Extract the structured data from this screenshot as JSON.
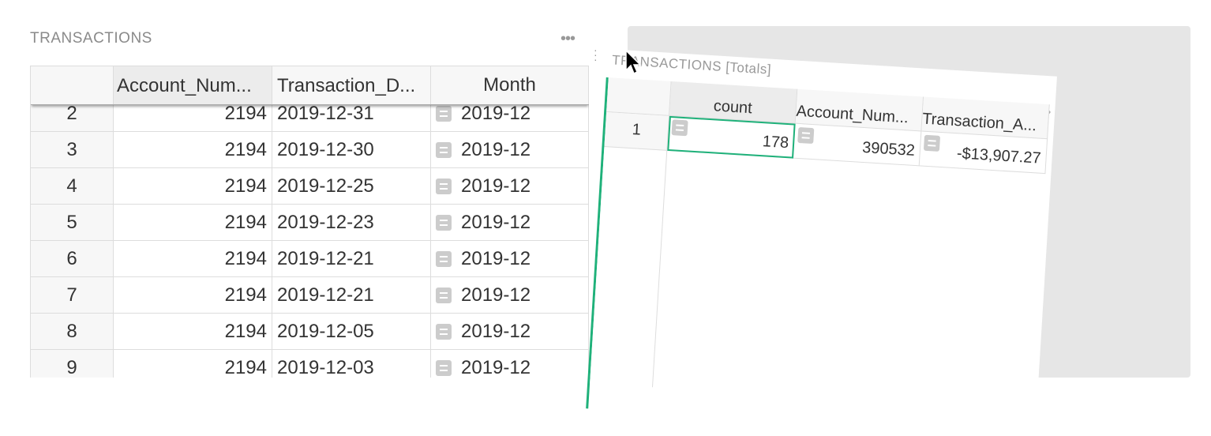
{
  "left_table": {
    "title": "TRANSACTIONS",
    "menu": "•••",
    "columns": [
      "",
      "Account_Num...",
      "Transaction_D...",
      "Month"
    ],
    "rows": [
      {
        "n": "2",
        "account": "2194",
        "date": "2019-12-31",
        "month": "2019-12"
      },
      {
        "n": "3",
        "account": "2194",
        "date": "2019-12-30",
        "month": "2019-12"
      },
      {
        "n": "4",
        "account": "2194",
        "date": "2019-12-25",
        "month": "2019-12"
      },
      {
        "n": "5",
        "account": "2194",
        "date": "2019-12-23",
        "month": "2019-12"
      },
      {
        "n": "6",
        "account": "2194",
        "date": "2019-12-21",
        "month": "2019-12"
      },
      {
        "n": "7",
        "account": "2194",
        "date": "2019-12-21",
        "month": "2019-12"
      },
      {
        "n": "8",
        "account": "2194",
        "date": "2019-12-05",
        "month": "2019-12"
      },
      {
        "n": "9",
        "account": "2194",
        "date": "2019-12-03",
        "month": "2019-12"
      }
    ]
  },
  "dragged_panel": {
    "title": "TRANSACTIONS [Totals]",
    "menu": "•••",
    "columns": [
      "count",
      "Account_Num...",
      "Transaction_A..."
    ],
    "rows": [
      {
        "n": "1",
        "count": "178",
        "account": "390532",
        "amount": "-$13,907.27"
      }
    ]
  },
  "colors": {
    "accent": "#1fb17a",
    "drop_zone": "#e6e6e6"
  }
}
